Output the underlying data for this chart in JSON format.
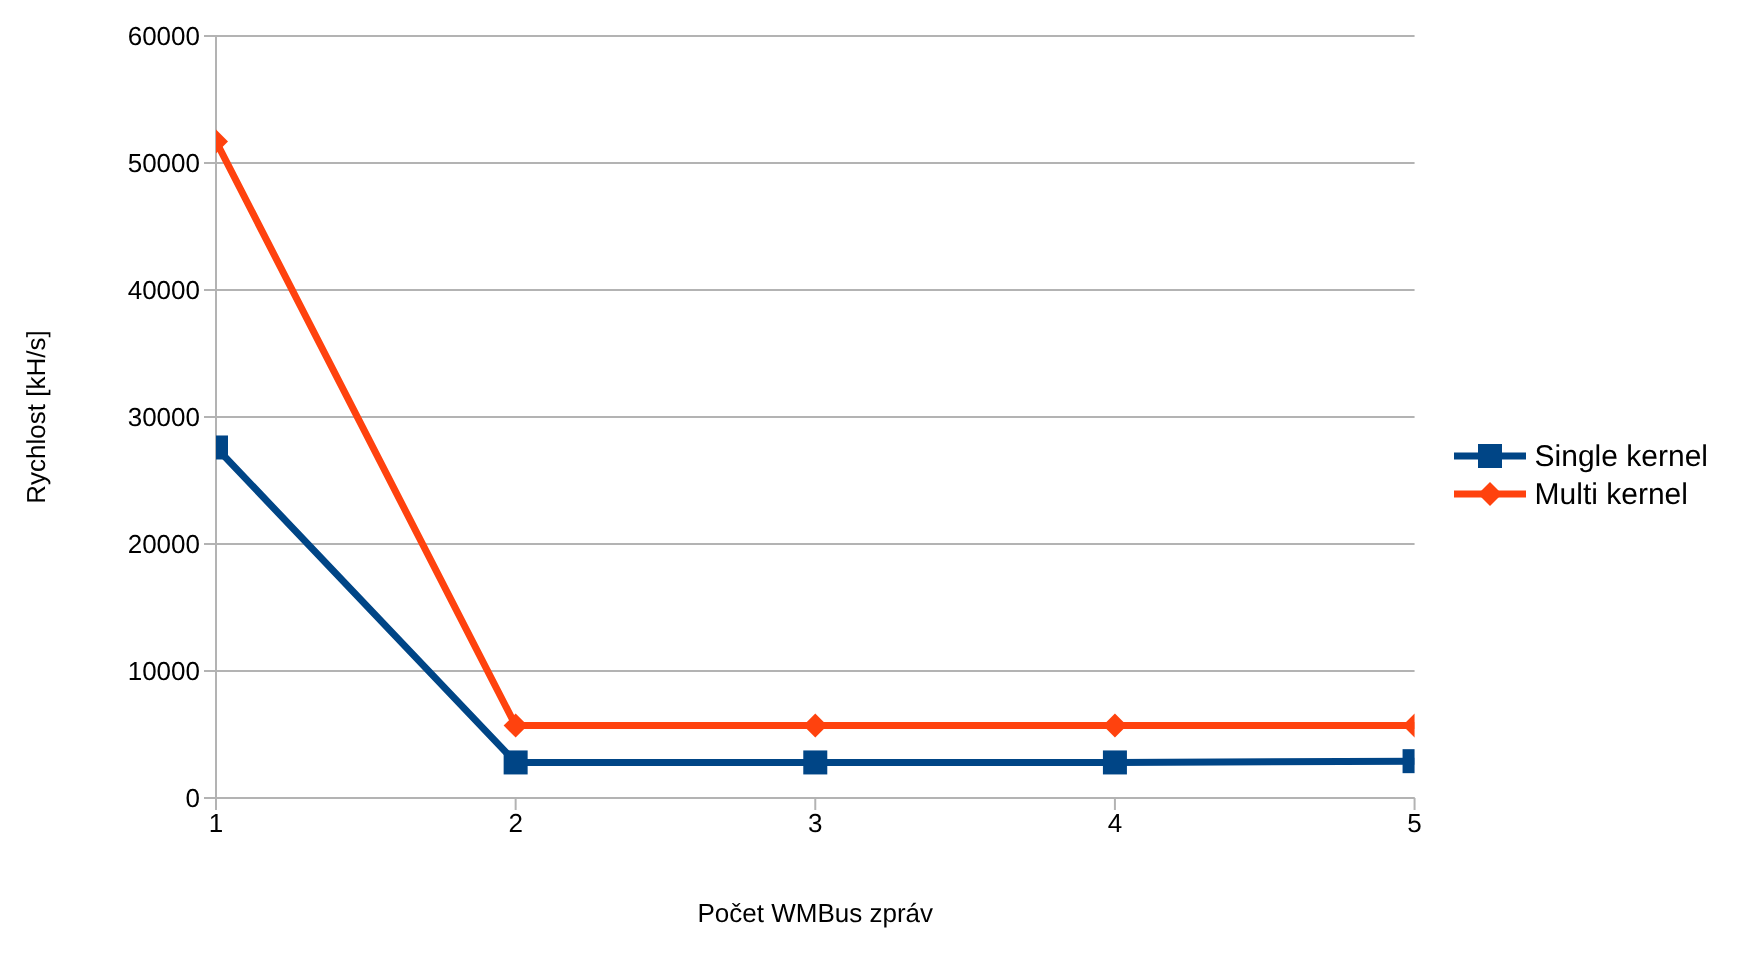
{
  "chart_data": {
    "type": "line",
    "xlabel": "Počet WMBus zpráv",
    "ylabel": "Rychlost [kH/s]",
    "x": [
      1,
      2,
      3,
      4,
      5
    ],
    "xlim": [
      1,
      5
    ],
    "xticks": [
      1,
      2,
      3,
      4,
      5
    ],
    "ylim": [
      0,
      60000
    ],
    "yticks": [
      0,
      10000,
      20000,
      30000,
      40000,
      50000,
      60000
    ],
    "grid": "y",
    "legend": "right",
    "line_style": "solid",
    "series": [
      {
        "name": "Single kernel",
        "color": "#004586",
        "marker": "square",
        "values": [
          27600,
          2800,
          2800,
          2800,
          2900
        ]
      },
      {
        "name": "Multi kernel",
        "color": "#ff420e",
        "marker": "diamond",
        "values": [
          51700,
          5700,
          5700,
          5700,
          5700
        ]
      }
    ]
  }
}
